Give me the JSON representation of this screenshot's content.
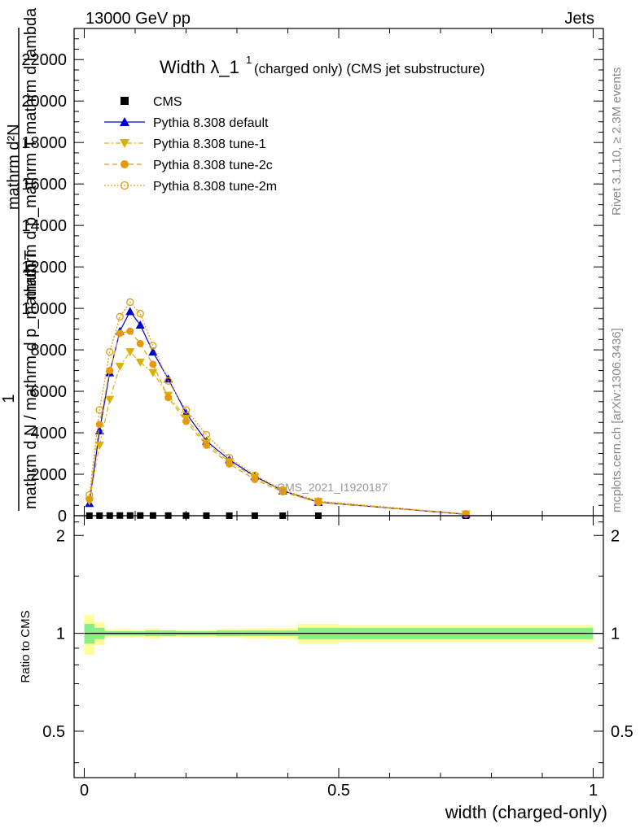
{
  "header": {
    "left": "13000 GeV pp",
    "right": "Jets"
  },
  "side_labels": {
    "rivet": "Rivet 3.1.10, ≥ 2.3M events",
    "mcplots": "mcplots.cern.ch [arXiv:1306.3436]"
  },
  "watermark": "CMS_2021_I1920187",
  "title": {
    "main": "Width λ_1",
    "sup": "1",
    "sub": "(charged only) (CMS jet substructure)"
  },
  "ylabel_main": {
    "line1": "mathrm d²N",
    "line2": "mathrm d p_mathrm T mathrm d lambda",
    "one": "1",
    "line3": "mathrm d N / mathrm d p_mathrm T"
  },
  "ylabel_ratio": "Ratio to CMS",
  "xlabel": "width (charged-only)",
  "chart_data": {
    "type": "line",
    "x_range": [
      -0.02,
      1.02
    ],
    "y_range_main": [
      0,
      23500
    ],
    "y_range_ratio": [
      0.36,
      2.3
    ],
    "x_ticks": [
      {
        "v": 0,
        "label": "0"
      },
      {
        "v": 0.5,
        "label": "0.5"
      },
      {
        "v": 1,
        "label": "1"
      }
    ],
    "y_ticks_main": [
      {
        "v": 0,
        "label": "0"
      },
      {
        "v": 2000,
        "label": "2000"
      },
      {
        "v": 4000,
        "label": "4000"
      },
      {
        "v": 6000,
        "label": "6000"
      },
      {
        "v": 8000,
        "label": "8000"
      },
      {
        "v": 10000,
        "label": "10000"
      },
      {
        "v": 12000,
        "label": "12000"
      },
      {
        "v": 14000,
        "label": "14000"
      },
      {
        "v": 16000,
        "label": "16000"
      },
      {
        "v": 18000,
        "label": "18000"
      },
      {
        "v": 20000,
        "label": "20000"
      },
      {
        "v": 22000,
        "label": "22000"
      }
    ],
    "y_ticks_ratio": [
      {
        "v": 0.5,
        "label": "0.5"
      },
      {
        "v": 1,
        "label": "1"
      },
      {
        "v": 2,
        "label": "2"
      }
    ],
    "x": [
      0.01,
      0.03,
      0.05,
      0.07,
      0.09,
      0.11,
      0.135,
      0.165,
      0.2,
      0.24,
      0.285,
      0.335,
      0.39,
      0.46,
      0.75
    ],
    "series": [
      {
        "name": "CMS",
        "color": "#000000",
        "marker": "square",
        "dash": "none",
        "values": [
          0.9,
          4.1,
          6.9,
          8.8,
          9.8,
          9.3,
          8.0,
          6.7,
          5.1,
          3.7,
          2.7,
          1.9,
          1.2,
          0.65,
          0.08
        ]
      },
      {
        "name": "Pythia 8.308 default",
        "color": "#0000cc",
        "marker": "triangle-up",
        "dash": "none",
        "values": [
          600,
          4100,
          6900,
          8900,
          9850,
          9200,
          7900,
          6600,
          4950,
          3600,
          2700,
          1900,
          1200,
          650,
          70
        ]
      },
      {
        "name": "Pythia 8.308 tune-1",
        "color": "#dbb000",
        "marker": "triangle-down",
        "dash": "6,3,2,3",
        "values": [
          700,
          3400,
          5600,
          7200,
          7900,
          7400,
          6900,
          5800,
          4700,
          3500,
          2600,
          1850,
          1200,
          680,
          80
        ]
      },
      {
        "name": "Pythia 8.308 tune-2c",
        "color": "#e39a10",
        "marker": "circle",
        "dash": "6,4",
        "values": [
          800,
          4400,
          7000,
          8800,
          8900,
          8300,
          7300,
          5700,
          4550,
          3400,
          2500,
          1750,
          1150,
          640,
          75
        ]
      },
      {
        "name": "Pythia 8.308 tune-2m",
        "color": "#e39a10",
        "marker": "circle-open",
        "dash": "2,2",
        "values": [
          1000,
          5100,
          7900,
          9600,
          10300,
          9750,
          8200,
          6500,
          5100,
          3900,
          2800,
          1950,
          1250,
          700,
          85
        ]
      }
    ],
    "ratio_band_edges": [
      0,
      0.02,
      0.04,
      0.06,
      0.08,
      0.1,
      0.12,
      0.15,
      0.18,
      0.22,
      0.26,
      0.31,
      0.36,
      0.42,
      0.5,
      1.0
    ],
    "ratio_band_inner": [
      [
        0.93,
        1.07
      ],
      [
        0.96,
        1.04
      ],
      [
        0.985,
        1.015
      ],
      [
        0.985,
        1.015
      ],
      [
        0.985,
        1.015
      ],
      [
        0.985,
        1.015
      ],
      [
        0.98,
        1.02
      ],
      [
        0.98,
        1.02
      ],
      [
        0.985,
        1.015
      ],
      [
        0.985,
        1.015
      ],
      [
        0.98,
        1.02
      ],
      [
        0.98,
        1.02
      ],
      [
        0.98,
        1.02
      ],
      [
        0.96,
        1.04
      ],
      [
        0.96,
        1.04
      ]
    ],
    "ratio_band_outer": [
      [
        0.86,
        1.14
      ],
      [
        0.92,
        1.08
      ],
      [
        0.97,
        1.03
      ],
      [
        0.97,
        1.03
      ],
      [
        0.97,
        1.03
      ],
      [
        0.975,
        1.025
      ],
      [
        0.965,
        1.035
      ],
      [
        0.975,
        1.025
      ],
      [
        0.975,
        1.025
      ],
      [
        0.975,
        1.025
      ],
      [
        0.97,
        1.03
      ],
      [
        0.965,
        1.035
      ],
      [
        0.96,
        1.04
      ],
      [
        0.93,
        1.07
      ],
      [
        0.94,
        1.06
      ]
    ],
    "colors": {
      "band_outer": "#ffff99",
      "band_inner": "#88ee88",
      "axis": "#000000",
      "side_text": "#888888"
    }
  }
}
